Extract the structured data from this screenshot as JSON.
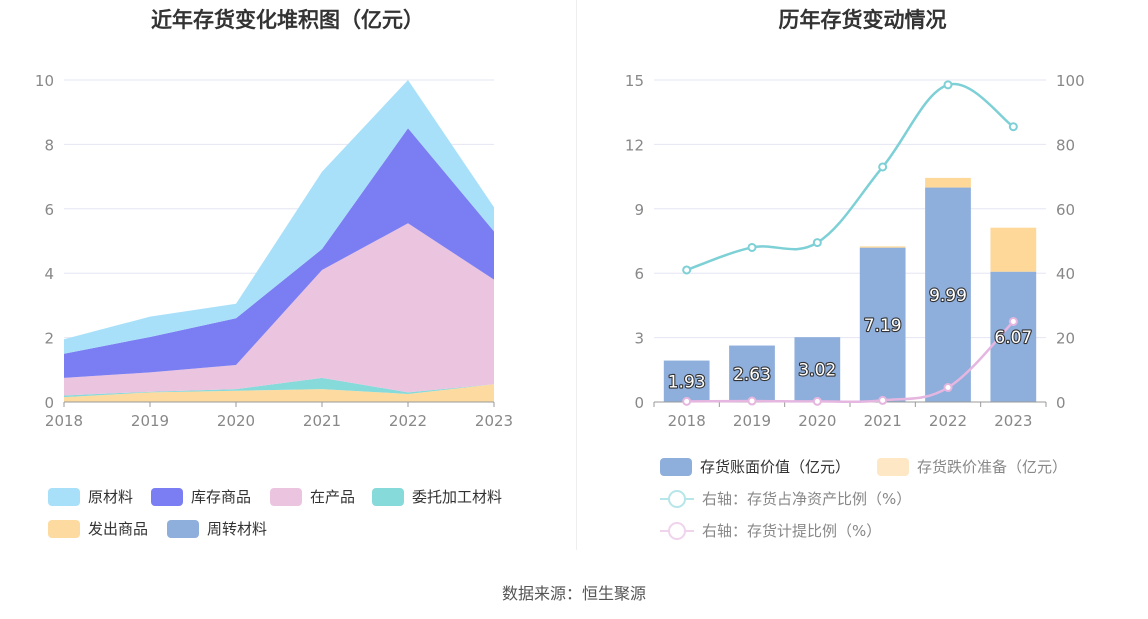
{
  "titles": {
    "left": "近年存货变化堆积图（亿元）",
    "right": "历年存货变动情况"
  },
  "source": "数据来源：恒生聚源",
  "colors": {
    "raw_materials": "#a8e0fa",
    "finished_goods": "#7b7ef2",
    "wip": "#ebc4e0",
    "consigned": "#86dada",
    "dispatched": "#fddba0",
    "turnover": "#8eaedb",
    "book_value": "#8eaedb",
    "impairment": "#fdd898",
    "line_ratio": "#7dd0d6",
    "line_provision": "#e5b6e0"
  },
  "chart_data": [
    {
      "type": "area",
      "stacked": true,
      "title": "近年存货变化堆积图（亿元）",
      "x": [
        "2018",
        "2019",
        "2020",
        "2021",
        "2022",
        "2023"
      ],
      "ylim": [
        0,
        10
      ],
      "yticks": [
        "0",
        "2",
        "4",
        "6",
        "8",
        "10"
      ],
      "grid": true,
      "legend_position": "bottom",
      "series": [
        {
          "name": "发出商品",
          "values": [
            0.15,
            0.3,
            0.35,
            0.4,
            0.25,
            0.55
          ]
        },
        {
          "name": "委托加工材料",
          "values": [
            0.05,
            0.02,
            0.05,
            0.35,
            0.05,
            0.0
          ]
        },
        {
          "name": "周转材料",
          "values": [
            0.0,
            0.0,
            0.0,
            0.0,
            0.0,
            0.0
          ]
        },
        {
          "name": "在产品",
          "values": [
            0.55,
            0.6,
            0.75,
            3.35,
            5.25,
            3.25
          ]
        },
        {
          "name": "库存商品",
          "values": [
            0.75,
            1.1,
            1.45,
            0.65,
            2.95,
            1.5
          ]
        },
        {
          "name": "原材料",
          "values": [
            0.45,
            0.63,
            0.45,
            2.4,
            1.5,
            0.75
          ]
        }
      ],
      "legend_order": [
        "原材料",
        "库存商品",
        "在产品",
        "委托加工材料",
        "发出商品",
        "周转材料"
      ]
    },
    {
      "type": "bar",
      "stacked": true,
      "title": "历年存货变动情况",
      "categories": [
        "2018",
        "2019",
        "2020",
        "2021",
        "2022",
        "2023"
      ],
      "ylim": [
        0,
        15
      ],
      "yticks": [
        "0",
        "3",
        "6",
        "9",
        "12",
        "15"
      ],
      "y2lim": [
        0,
        100
      ],
      "y2ticks": [
        "0",
        "20",
        "40",
        "60",
        "80",
        "100"
      ],
      "grid": true,
      "legend_position": "bottom",
      "series": [
        {
          "name": "存货账面价值（亿元）",
          "type": "bar",
          "values": [
            1.93,
            2.63,
            3.02,
            7.19,
            9.99,
            6.07
          ],
          "labels": [
            "1.93",
            "2.63",
            "3.02",
            "7.19",
            "9.99",
            "6.07"
          ]
        },
        {
          "name": "存货跌价准备（亿元）",
          "type": "bar",
          "values": [
            0.0,
            0.0,
            0.0,
            0.06,
            0.45,
            2.05
          ]
        },
        {
          "name": "右轴：存货占净资产比例（%）",
          "type": "line",
          "axis": "right",
          "values": [
            41,
            48,
            49.5,
            73,
            98.5,
            85.5
          ]
        },
        {
          "name": "右轴：存货计提比例（%）",
          "type": "line",
          "axis": "right",
          "values": [
            0.2,
            0.3,
            0.2,
            0.5,
            4.5,
            25
          ]
        }
      ]
    }
  ]
}
